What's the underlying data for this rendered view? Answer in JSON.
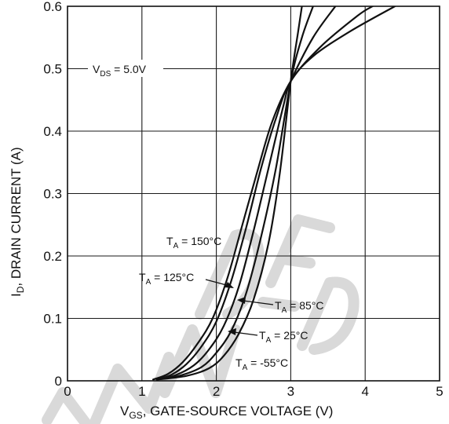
{
  "chart_data": {
    "type": "line",
    "title": "",
    "xlabel": "V_GS, GATE-SOURCE VOLTAGE (V)",
    "xlabel_main": "V",
    "xlabel_sub": "GS",
    "xlabel_rest": ", GATE-SOURCE VOLTAGE (V)",
    "ylabel": "I_D, DRAIN CURRENT (A)",
    "ylabel_main": "I",
    "ylabel_sub": "D",
    "ylabel_rest": ", DRAIN CURRENT (A)",
    "xlim": [
      0,
      5
    ],
    "ylim": [
      0,
      0.6
    ],
    "xticks": [
      "0",
      "1",
      "2",
      "3",
      "4",
      "5"
    ],
    "yticks": [
      "0",
      "0.1",
      "0.2",
      "0.3",
      "0.4",
      "0.5",
      "0.6"
    ],
    "grid": true,
    "condition": {
      "main": "V",
      "sub": "DS",
      "rest": " = 5.0V"
    },
    "series": [
      {
        "name": "T_A = -55°C",
        "label_main": "T",
        "label_sub": "A",
        "label_rest": " = -55°C",
        "points": [
          [
            1.2,
            0.002
          ],
          [
            1.6,
            0.008
          ],
          [
            1.9,
            0.02
          ],
          [
            2.1,
            0.04
          ],
          [
            2.3,
            0.075
          ],
          [
            2.5,
            0.13
          ],
          [
            2.7,
            0.22
          ],
          [
            2.85,
            0.33
          ],
          [
            3.0,
            0.48
          ],
          [
            3.1,
            0.56
          ],
          [
            3.15,
            0.6
          ]
        ]
      },
      {
        "name": "T_A = 25°C",
        "label_main": "T",
        "label_sub": "A",
        "label_rest": " = 25°C",
        "points": [
          [
            1.2,
            0.002
          ],
          [
            1.5,
            0.008
          ],
          [
            1.8,
            0.022
          ],
          [
            2.0,
            0.045
          ],
          [
            2.2,
            0.08
          ],
          [
            2.4,
            0.14
          ],
          [
            2.6,
            0.23
          ],
          [
            2.8,
            0.34
          ],
          [
            3.0,
            0.48
          ],
          [
            3.15,
            0.55
          ],
          [
            3.3,
            0.6
          ]
        ]
      },
      {
        "name": "T_A = 85°C",
        "label_main": "T",
        "label_sub": "A",
        "label_rest": " = 85°C",
        "points": [
          [
            1.2,
            0.002
          ],
          [
            1.45,
            0.009
          ],
          [
            1.7,
            0.025
          ],
          [
            1.9,
            0.05
          ],
          [
            2.1,
            0.088
          ],
          [
            2.3,
            0.15
          ],
          [
            2.5,
            0.24
          ],
          [
            2.7,
            0.34
          ],
          [
            2.9,
            0.44
          ],
          [
            3.0,
            0.48
          ],
          [
            3.3,
            0.55
          ],
          [
            3.6,
            0.6
          ]
        ]
      },
      {
        "name": "T_A = 125°C",
        "label_main": "T",
        "label_sub": "A",
        "label_rest": " = 125°C",
        "points": [
          [
            1.2,
            0.002
          ],
          [
            1.4,
            0.01
          ],
          [
            1.6,
            0.027
          ],
          [
            1.8,
            0.055
          ],
          [
            2.0,
            0.095
          ],
          [
            2.2,
            0.16
          ],
          [
            2.4,
            0.245
          ],
          [
            2.6,
            0.34
          ],
          [
            2.8,
            0.42
          ],
          [
            3.0,
            0.48
          ],
          [
            3.4,
            0.535
          ],
          [
            3.9,
            0.585
          ],
          [
            4.1,
            0.6
          ]
        ]
      },
      {
        "name": "T_A = 150°C",
        "label_main": "T",
        "label_sub": "A",
        "label_rest": " = 150°C",
        "points": [
          [
            1.15,
            0.002
          ],
          [
            1.35,
            0.011
          ],
          [
            1.55,
            0.03
          ],
          [
            1.75,
            0.06
          ],
          [
            1.95,
            0.1
          ],
          [
            2.15,
            0.165
          ],
          [
            2.35,
            0.25
          ],
          [
            2.55,
            0.335
          ],
          [
            2.75,
            0.415
          ],
          [
            3.0,
            0.48
          ],
          [
            3.3,
            0.52
          ],
          [
            3.8,
            0.56
          ],
          [
            4.4,
            0.6
          ]
        ]
      }
    ]
  }
}
